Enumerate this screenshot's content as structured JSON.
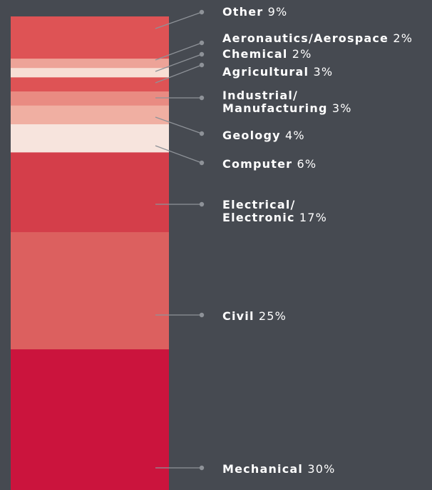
{
  "chart_data": {
    "type": "stacked-bar",
    "unit": "%",
    "segments": [
      {
        "label": "Other",
        "value": 9,
        "color": "#de5355"
      },
      {
        "label": "Aeronautics/Aerospace",
        "value": 2,
        "color": "#eda398"
      },
      {
        "label": "Chemical",
        "value": 2,
        "color": "#f7ded5"
      },
      {
        "label": "Agricultural",
        "value": 3,
        "color": "#de5355"
      },
      {
        "label": [
          "Industrial/",
          "Manufacturing"
        ],
        "value": 3,
        "color": "#e98b82"
      },
      {
        "label": "Geology",
        "value": 4,
        "color": "#f0afa2"
      },
      {
        "label": "Computer",
        "value": 6,
        "color": "#f7e4dd"
      },
      {
        "label": [
          "Electrical/",
          "Electronic"
        ],
        "value": 17,
        "color": "#d43e4a"
      },
      {
        "label": "Civil",
        "value": 25,
        "color": "#dc605f"
      },
      {
        "label": "Mechanical",
        "value": 30,
        "color": "#cb143d"
      }
    ],
    "leader_color": "#8e9298",
    "background": "#464a51",
    "text_color": "#ffffff"
  }
}
